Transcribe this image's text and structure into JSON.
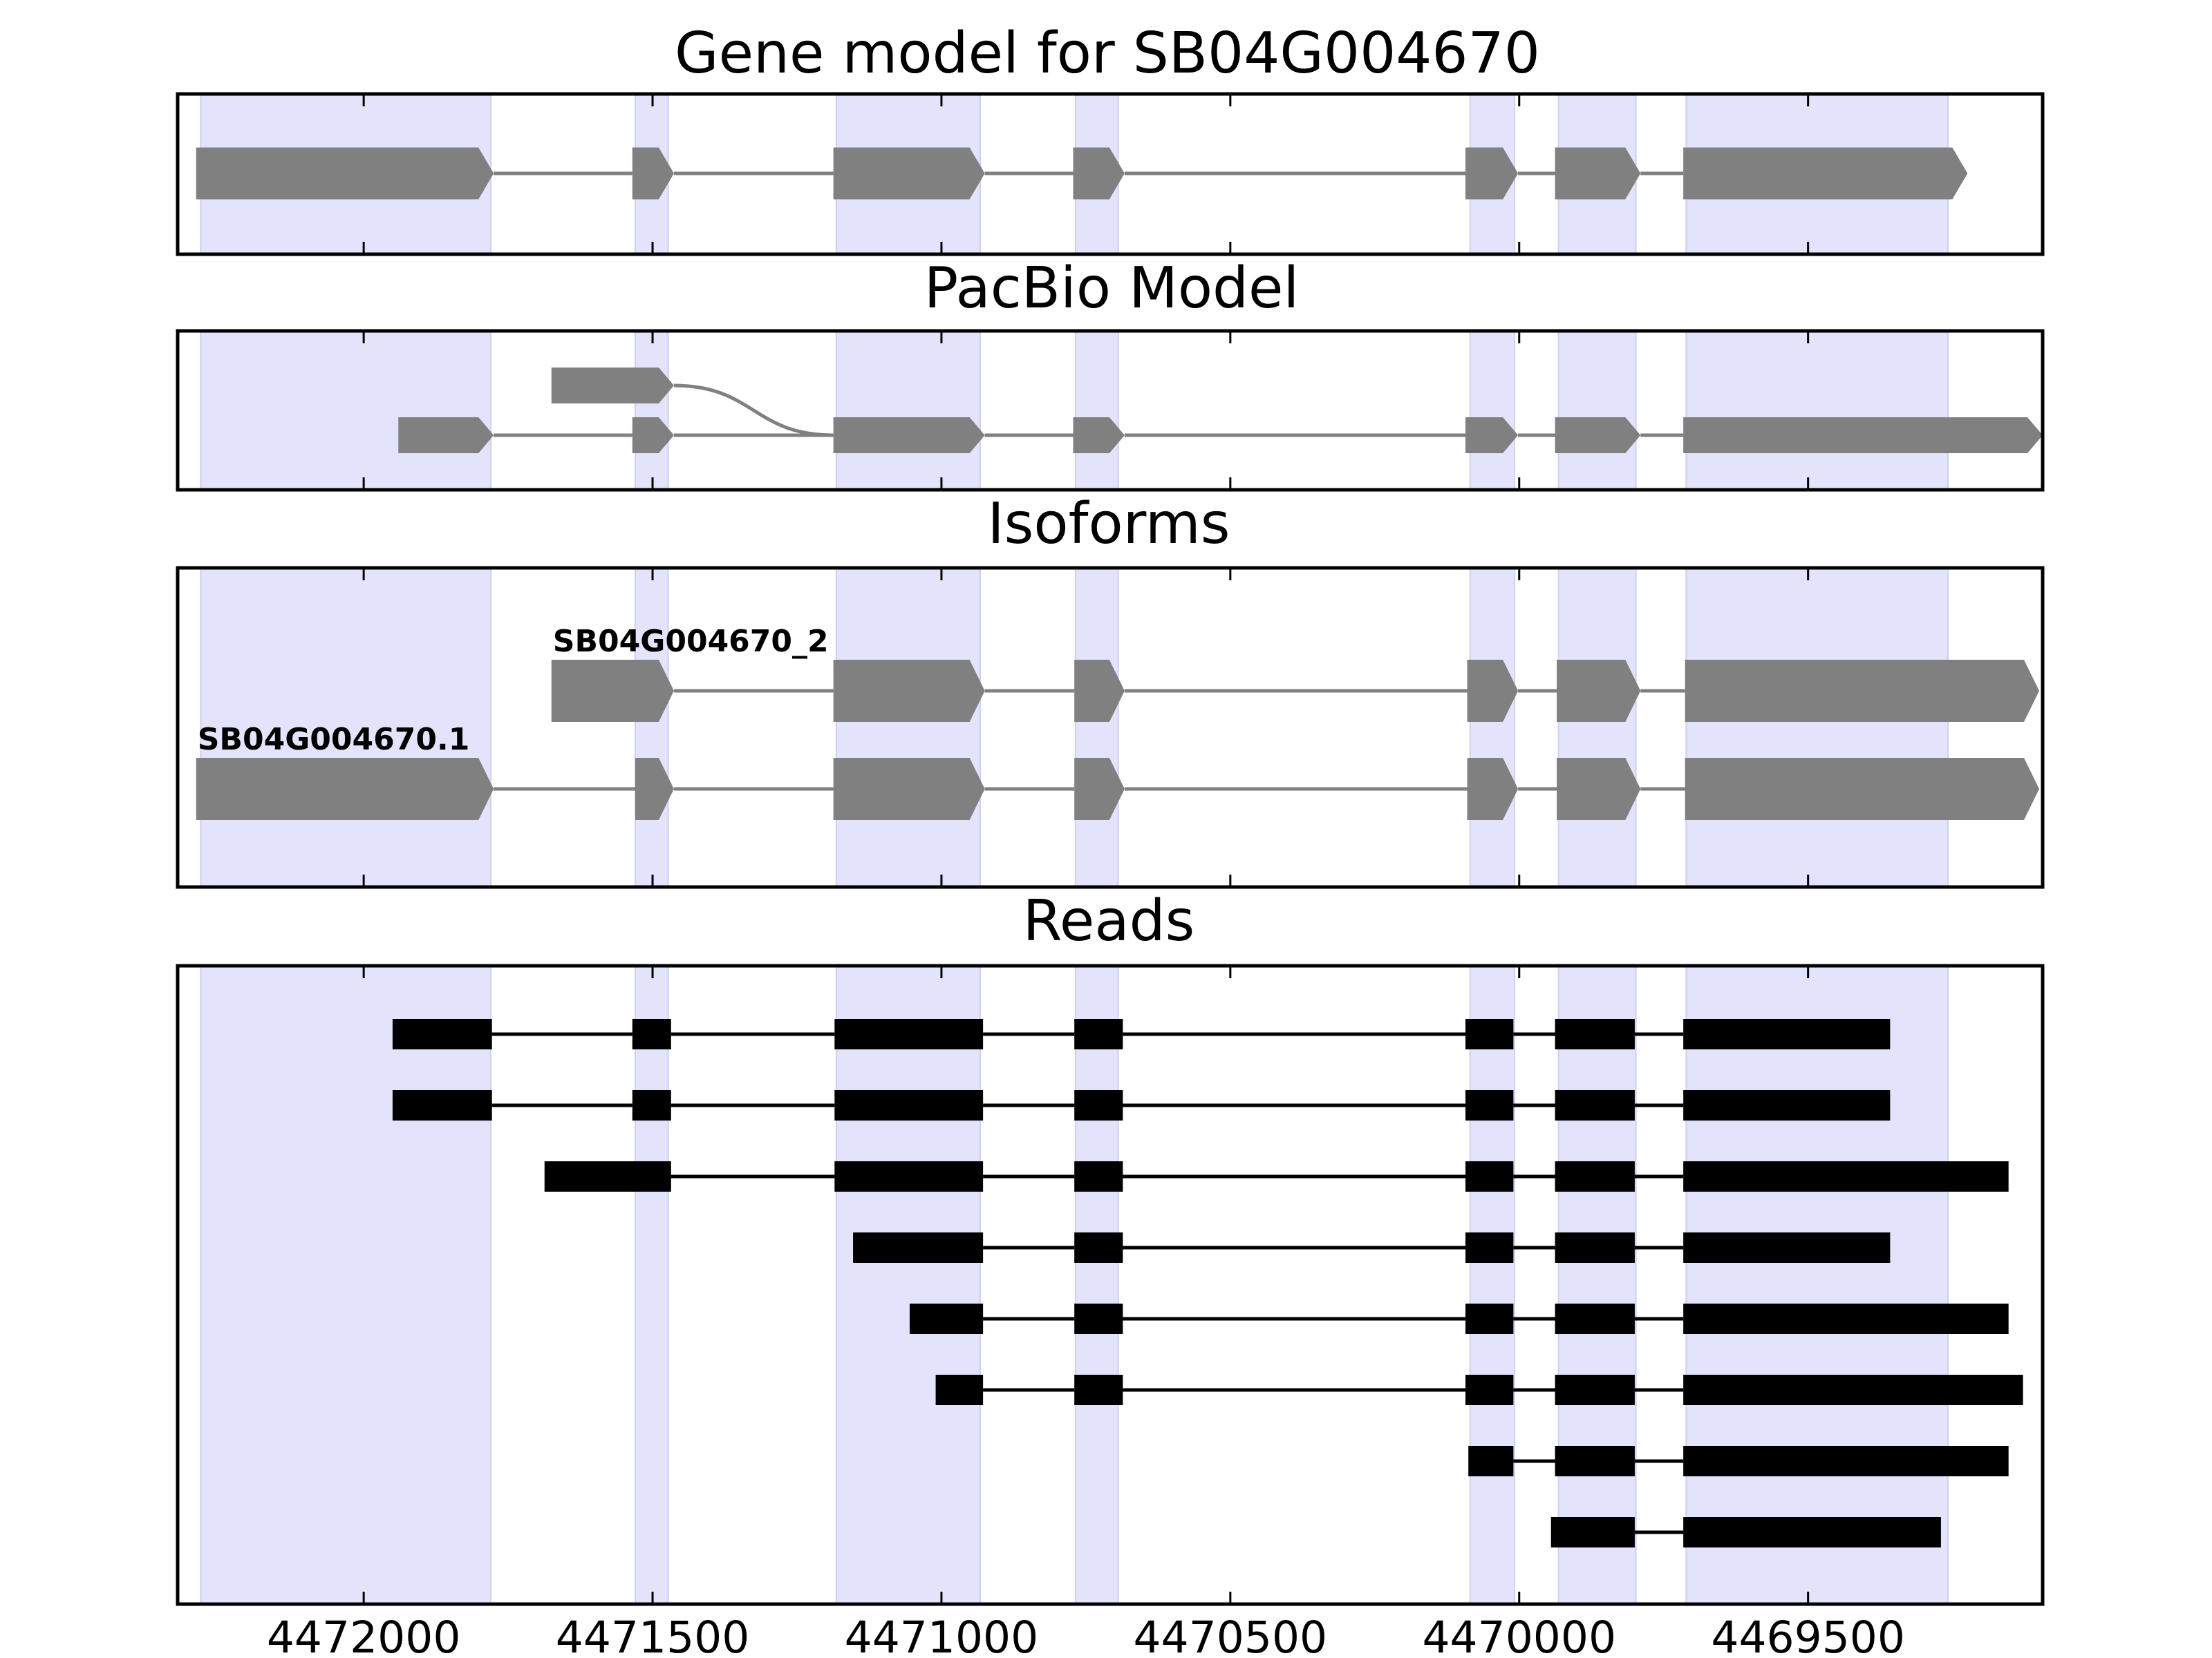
{
  "figure": {
    "background": "#ffffff",
    "exon_band_color": "#e3e3fb",
    "model_color": "#808080",
    "read_color": "#000000"
  },
  "chart_data": {
    "type": "gene-structure",
    "x_axis": {
      "reversed": true,
      "range": [
        4472322,
        4469094
      ],
      "ticks": [
        4472000,
        4471500,
        4471000,
        4470500,
        4470000,
        4469500
      ],
      "tick_labels": [
        "4472000",
        "4471500",
        "4471000",
        "4470500",
        "4470000",
        "4469500"
      ]
    },
    "exon_bands": [
      [
        4472282,
        4471780
      ],
      [
        4471530,
        4471473
      ],
      [
        4471182,
        4470933
      ],
      [
        4470768,
        4470694
      ],
      [
        4470085,
        4470008
      ],
      [
        4469932,
        4469798
      ],
      [
        4469711,
        4469258
      ]
    ],
    "panels": [
      {
        "id": "gene-model",
        "title": "Gene model for SB04G004670",
        "kind": "model",
        "tracks": [
          {
            "row": 0,
            "label": "",
            "strand": "-",
            "exons": [
              [
                4472290,
                4471775
              ],
              [
                4471535,
                4471463
              ],
              [
                4471187,
                4470925
              ],
              [
                4470772,
                4470683
              ],
              [
                4470093,
                4470002
              ],
              [
                4469938,
                4469790
              ],
              [
                4469716,
                4469224
              ]
            ]
          }
        ]
      },
      {
        "id": "pacbio-model",
        "title": "PacBio Model",
        "kind": "model",
        "tracks": [
          {
            "row": 1,
            "label": "",
            "strand": "-",
            "exons": [
              [
                4471940,
                4471775
              ],
              [
                4471535,
                4471463
              ],
              [
                4471187,
                4470925
              ],
              [
                4470772,
                4470683
              ],
              [
                4470093,
                4470002
              ],
              [
                4469938,
                4469790
              ],
              [
                4469716,
                4469094
              ]
            ]
          },
          {
            "row": 0,
            "label": "",
            "strand": "-",
            "exons": [
              [
                4471675,
                4471463
              ]
            ],
            "connector_to": 4471187
          }
        ]
      },
      {
        "id": "isoforms",
        "title": "Isoforms",
        "kind": "model",
        "tracks": [
          {
            "row": 0,
            "label": "SB04G004670_2",
            "strand": "-",
            "exons": [
              [
                4471675,
                4471463
              ],
              [
                4471187,
                4470925
              ],
              [
                4470770,
                4470683
              ],
              [
                4470090,
                4470002
              ],
              [
                4469935,
                4469790
              ],
              [
                4469713,
                4469100
              ]
            ]
          },
          {
            "row": 1,
            "label": "SB04G004670.1",
            "strand": "-",
            "exons": [
              [
                4472290,
                4471775
              ],
              [
                4471530,
                4471463
              ],
              [
                4471187,
                4470925
              ],
              [
                4470770,
                4470683
              ],
              [
                4470090,
                4470002
              ],
              [
                4469935,
                4469790
              ],
              [
                4469713,
                4469100
              ]
            ]
          }
        ]
      },
      {
        "id": "reads",
        "title": "Reads",
        "kind": "reads",
        "tracks": [
          {
            "row": 0,
            "exons": [
              [
                4471950,
                4471778
              ],
              [
                4471535,
                4471468
              ],
              [
                4471185,
                4470928
              ],
              [
                4470770,
                4470686
              ],
              [
                4470093,
                4470010
              ],
              [
                4469938,
                4469800
              ],
              [
                4469716,
                4469358
              ]
            ]
          },
          {
            "row": 1,
            "exons": [
              [
                4471950,
                4471778
              ],
              [
                4471535,
                4471468
              ],
              [
                4471185,
                4470928
              ],
              [
                4470770,
                4470686
              ],
              [
                4470093,
                4470010
              ],
              [
                4469938,
                4469800
              ],
              [
                4469716,
                4469358
              ]
            ]
          },
          {
            "row": 2,
            "exons": [
              [
                4471687,
                4471468
              ],
              [
                4471185,
                4470928
              ],
              [
                4470770,
                4470686
              ],
              [
                4470093,
                4470010
              ],
              [
                4469938,
                4469800
              ],
              [
                4469716,
                4469153
              ]
            ]
          },
          {
            "row": 3,
            "exons": [
              [
                4471153,
                4470928
              ],
              [
                4470770,
                4470686
              ],
              [
                4470093,
                4470010
              ],
              [
                4469938,
                4469800
              ],
              [
                4469716,
                4469358
              ]
            ]
          },
          {
            "row": 4,
            "exons": [
              [
                4471055,
                4470928
              ],
              [
                4470770,
                4470686
              ],
              [
                4470093,
                4470010
              ],
              [
                4469938,
                4469800
              ],
              [
                4469716,
                4469153
              ]
            ]
          },
          {
            "row": 5,
            "exons": [
              [
                4471010,
                4470928
              ],
              [
                4470770,
                4470686
              ],
              [
                4470093,
                4470010
              ],
              [
                4469938,
                4469800
              ],
              [
                4469716,
                4469128
              ]
            ]
          },
          {
            "row": 6,
            "exons": [
              [
                4470088,
                4470010
              ],
              [
                4469938,
                4469800
              ],
              [
                4469716,
                4469153
              ]
            ]
          },
          {
            "row": 7,
            "exons": [
              [
                4469945,
                4469800
              ],
              [
                4469716,
                4469270
              ]
            ]
          }
        ]
      }
    ]
  }
}
